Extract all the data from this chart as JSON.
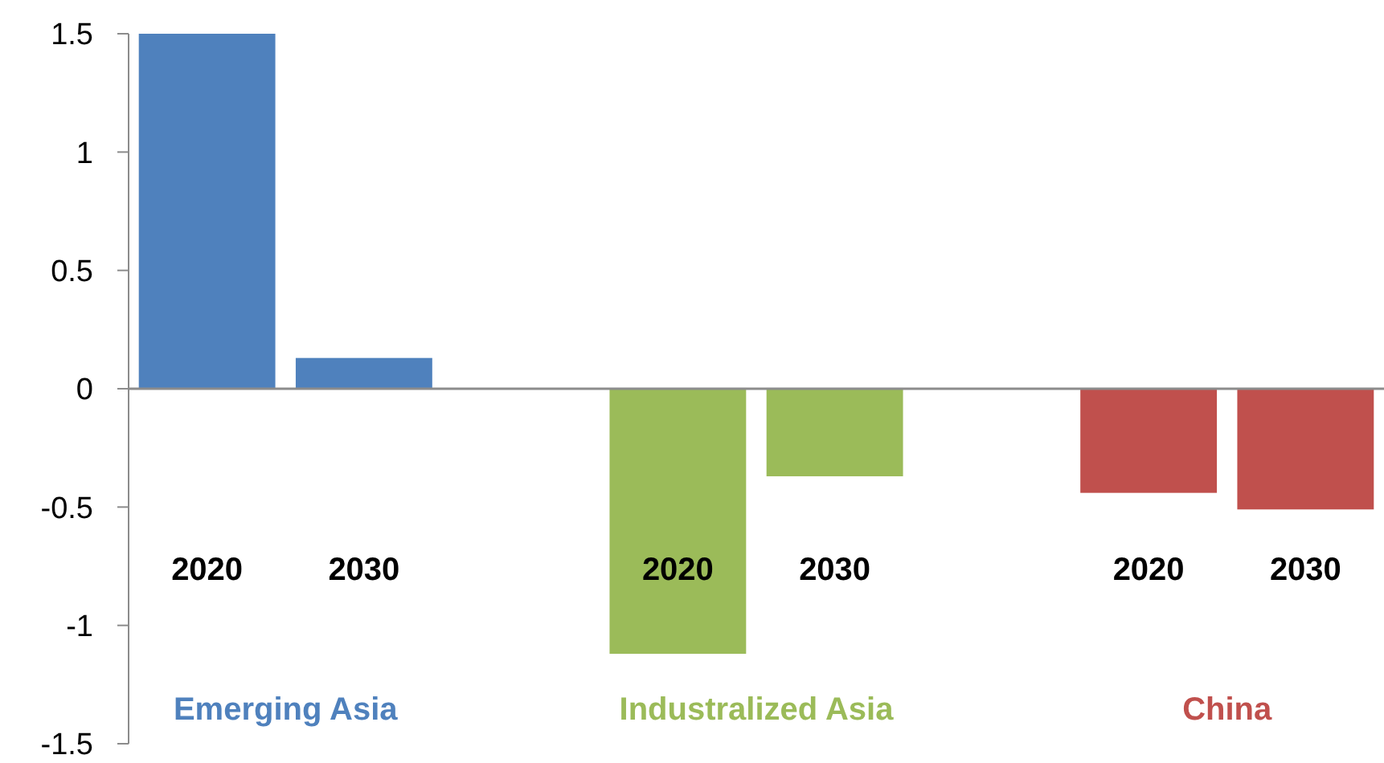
{
  "chart_data": {
    "type": "bar",
    "categories": [
      "2020",
      "2030",
      "2020",
      "2030",
      "2020",
      "2030"
    ],
    "series": [
      {
        "name": "Emerging Asia",
        "color": "#4f81bd",
        "values": [
          1.5,
          0.13,
          null,
          null,
          null,
          null
        ]
      },
      {
        "name": "Industralized Asia",
        "color": "#9bbb59",
        "values": [
          null,
          null,
          -1.12,
          -0.37,
          null,
          null
        ]
      },
      {
        "name": "China",
        "color": "#c0504d",
        "values": [
          null,
          null,
          null,
          null,
          -0.44,
          -0.51
        ]
      }
    ],
    "ylim": [
      -1.5,
      1.5
    ],
    "yticks": [
      -1.5,
      -1,
      -0.5,
      0,
      0.5,
      1,
      1.5
    ]
  }
}
